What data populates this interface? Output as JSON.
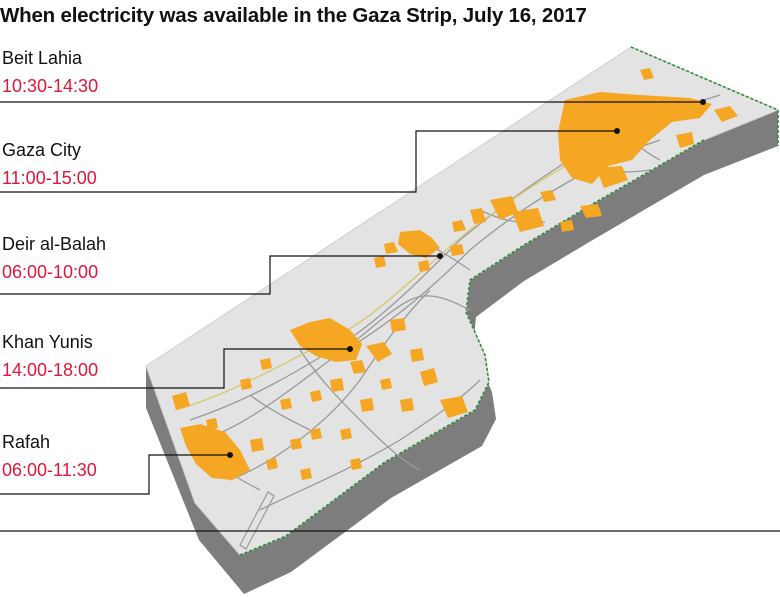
{
  "title": "When electricity was available in the Gaza Strip, July 16, 2017",
  "time_color": "#e0163a",
  "powered_area_color": "#f5a623",
  "locations": [
    {
      "name": "Beit Lahia",
      "hours": "10:30-14:30"
    },
    {
      "name": "Gaza City",
      "hours": "11:00-15:00"
    },
    {
      "name": "Deir al-Balah",
      "hours": "06:00-10:00"
    },
    {
      "name": "Khan Yunis",
      "hours": "14:00-18:00"
    },
    {
      "name": "Rafah",
      "hours": "06:00-11:30"
    }
  ]
}
